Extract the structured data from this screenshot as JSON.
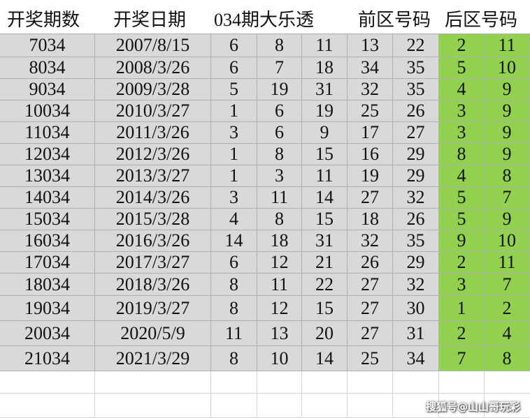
{
  "header": {
    "period": "开奖期数",
    "date": "开奖日期",
    "lottery": "034期大乐透",
    "front": "前区号码",
    "back": "后区号码"
  },
  "table": {
    "rows": [
      [
        "7034",
        "2007/8/15",
        "6",
        "8",
        "11",
        "13",
        "22",
        "2",
        "11"
      ],
      [
        "8034",
        "2008/3/26",
        "6",
        "7",
        "18",
        "34",
        "35",
        "5",
        "10"
      ],
      [
        "9034",
        "2009/3/28",
        "5",
        "19",
        "31",
        "32",
        "35",
        "4",
        "9"
      ],
      [
        "10034",
        "2010/3/27",
        "1",
        "6",
        "19",
        "25",
        "26",
        "3",
        "9"
      ],
      [
        "11034",
        "2011/3/26",
        "3",
        "6",
        "9",
        "17",
        "27",
        "3",
        "9"
      ],
      [
        "12034",
        "2012/3/26",
        "1",
        "8",
        "15",
        "16",
        "29",
        "8",
        "9"
      ],
      [
        "13034",
        "2013/3/27",
        "1",
        "3",
        "11",
        "19",
        "29",
        "4",
        "8"
      ],
      [
        "14034",
        "2014/3/26",
        "3",
        "11",
        "14",
        "27",
        "32",
        "5",
        "7"
      ],
      [
        "15034",
        "2015/3/28",
        "4",
        "8",
        "15",
        "18",
        "26",
        "5",
        "9"
      ],
      [
        "16034",
        "2016/3/26",
        "14",
        "18",
        "31",
        "32",
        "35",
        "9",
        "10"
      ],
      [
        "17034",
        "2017/3/27",
        "6",
        "12",
        "21",
        "26",
        "29",
        "2",
        "11"
      ],
      [
        "18034",
        "2018/3/26",
        "8",
        "11",
        "22",
        "27",
        "32",
        "3",
        "7"
      ],
      [
        "19034",
        "2019/3/27",
        "8",
        "12",
        "15",
        "27",
        "30",
        "1",
        "2"
      ],
      [
        "20034",
        "2020/5/9",
        "11",
        "13",
        "20",
        "27",
        "31",
        "2",
        "4"
      ],
      [
        "21034",
        "2021/3/29",
        "8",
        "10",
        "14",
        "25",
        "34",
        "7",
        "8"
      ]
    ]
  },
  "watermark": "搜狐号@山山哥玩彩"
}
